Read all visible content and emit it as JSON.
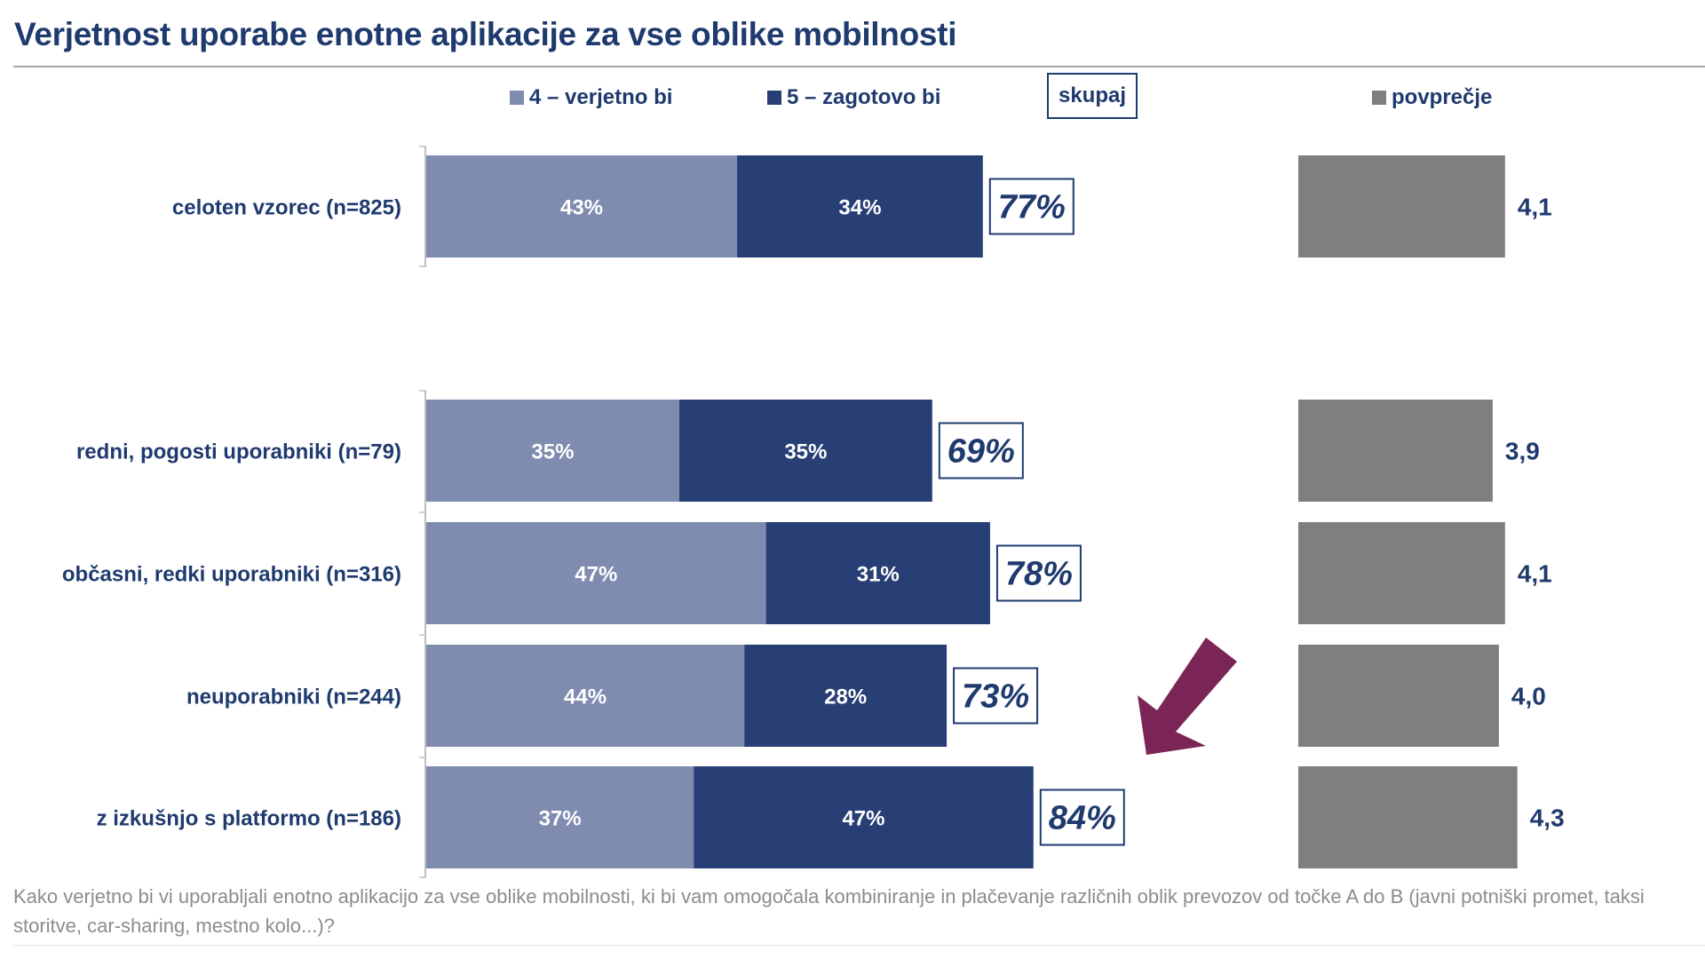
{
  "header": {
    "title": "Verjetnost uporabe enotne aplikacije za vse oblike mobilnosti"
  },
  "legend": {
    "series_4_label": "4 – verjetno bi",
    "series_5_label": "5 – zagotovo bi",
    "total_label": "skupaj",
    "average_label": "povprečje"
  },
  "colors": {
    "series_4": "#7f8cb0",
    "series_5": "#283f76",
    "average": "#7f7f80",
    "text": "#1f3a6e",
    "highlight_arrow": "#7b2556"
  },
  "annotation": {
    "arrow_icon": "arrow-down-left-icon",
    "points_to": "z izkušnjo s platformo (n=186)"
  },
  "footnote": "Kako verjetno bi vi uporabljali enotno aplikacijo za vse oblike mobilnosti, ki bi vam omogočala kombiniranje in plačevanje različnih oblik prevozov od točke A do B (javni potniški promet, taksi storitve, car-sharing, mestno kolo...)?",
  "chart_data": {
    "type": "bar",
    "orientation": "horizontal",
    "stacked": true,
    "title": "Verjetnost uporabe enotne aplikacije za vse oblike mobilnosti",
    "xlabel": "",
    "ylabel": "",
    "xlim": [
      0,
      100
    ],
    "grid": false,
    "legend_position": "top",
    "categories": [
      "celoten vzorec (n=825)",
      "redni, pogosti uporabniki (n=79)",
      "občasni, redki uporabniki (n=316)",
      "neuporabniki (n=244)",
      "z izkušnjo s platformo (n=186)"
    ],
    "series": [
      {
        "name": "4 – verjetno bi",
        "values": [
          43,
          35,
          47,
          44,
          37
        ],
        "labels": [
          "43%",
          "35%",
          "47%",
          "44%",
          "37%"
        ]
      },
      {
        "name": "5 – zagotovo bi",
        "values": [
          34,
          35,
          31,
          28,
          47
        ],
        "labels": [
          "34%",
          "35%",
          "31%",
          "28%",
          "47%"
        ]
      }
    ],
    "totals": {
      "name": "skupaj",
      "values": [
        77,
        69,
        78,
        73,
        84
      ],
      "labels": [
        "77%",
        "69%",
        "78%",
        "73%",
        "84%"
      ]
    },
    "average": {
      "name": "povprečje",
      "type": "bar",
      "values": [
        4.1,
        3.9,
        4.1,
        4.0,
        4.3
      ],
      "labels": [
        "4,1",
        "3,9",
        "4,1",
        "4,0",
        "4,3"
      ],
      "scale": [
        1,
        5
      ]
    }
  }
}
